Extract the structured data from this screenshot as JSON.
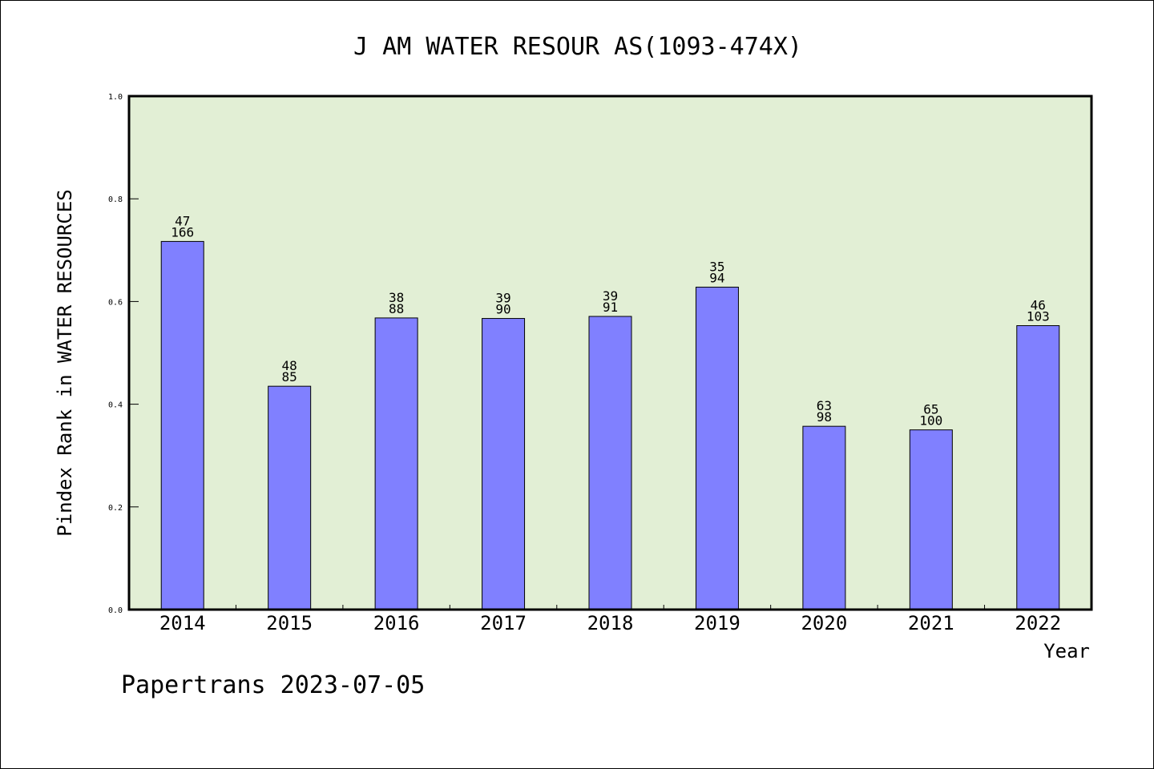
{
  "chart_data": {
    "type": "bar",
    "title": "J AM WATER RESOUR AS(1093-474X)",
    "xlabel": "Year",
    "ylabel": "Pindex Rank in WATER RESOURCES",
    "ylim": [
      0,
      1.0
    ],
    "yticks": [
      "0.0",
      "0.2",
      "0.4",
      "0.6",
      "0.8",
      "1.0"
    ],
    "categories": [
      "2014",
      "2015",
      "2016",
      "2017",
      "2018",
      "2019",
      "2020",
      "2021",
      "2022"
    ],
    "values": [
      0.717,
      0.435,
      0.568,
      0.567,
      0.571,
      0.628,
      0.357,
      0.35,
      0.553
    ],
    "rank_labels": [
      "47",
      "48",
      "38",
      "39",
      "39",
      "35",
      "63",
      "65",
      "46"
    ],
    "total_labels": [
      "166",
      "85",
      "88",
      "90",
      "91",
      "94",
      "98",
      "100",
      "103"
    ],
    "grid": false,
    "bar_color": "#8080ff",
    "background_color": "#e2efd5"
  },
  "footer": "Papertrans 2023-07-05"
}
